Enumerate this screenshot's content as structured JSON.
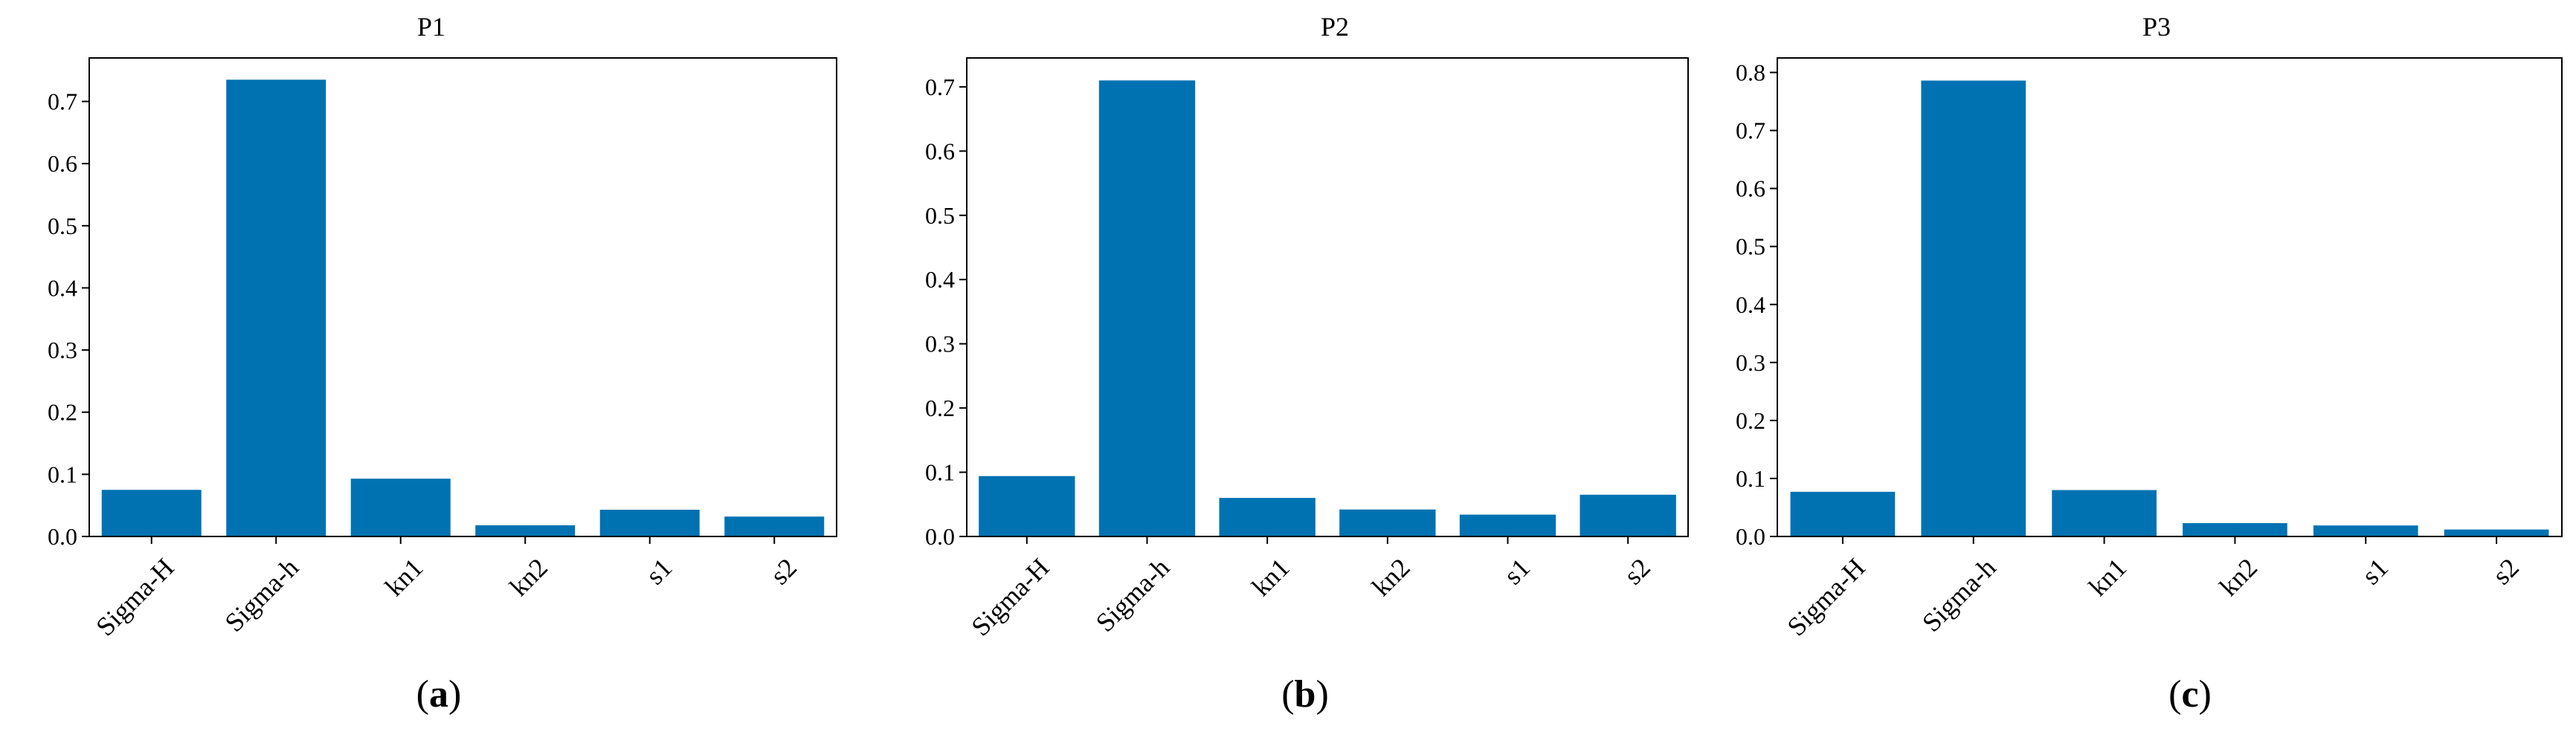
{
  "chart_data": [
    {
      "type": "bar",
      "title": "P1",
      "categories": [
        "Sigma-H",
        "Sigma-h",
        "kn1",
        "kn2",
        "s1",
        "s2"
      ],
      "values": [
        0.075,
        0.735,
        0.093,
        0.018,
        0.043,
        0.032
      ],
      "ylim": [
        0,
        0.77
      ],
      "yticks": [
        0.0,
        0.1,
        0.2,
        0.3,
        0.4,
        0.5,
        0.6,
        0.7
      ],
      "ytick_labels": [
        "0.0",
        "0.1",
        "0.2",
        "0.3",
        "0.4",
        "0.5",
        "0.6",
        "0.7"
      ],
      "bar_color": "#0072B2",
      "caption": {
        "open": "(",
        "letter": "a",
        "close": ")"
      }
    },
    {
      "type": "bar",
      "title": "P2",
      "categories": [
        "Sigma-H",
        "Sigma-h",
        "kn1",
        "kn2",
        "s1",
        "s2"
      ],
      "values": [
        0.094,
        0.71,
        0.06,
        0.042,
        0.034,
        0.065
      ],
      "ylim": [
        0,
        0.745
      ],
      "yticks": [
        0.0,
        0.1,
        0.2,
        0.3,
        0.4,
        0.5,
        0.6,
        0.7
      ],
      "ytick_labels": [
        "0.0",
        "0.1",
        "0.2",
        "0.3",
        "0.4",
        "0.5",
        "0.6",
        "0.7"
      ],
      "bar_color": "#0072B2",
      "caption": {
        "open": "(",
        "letter": "b",
        "close": ")"
      }
    },
    {
      "type": "bar",
      "title": "P3",
      "categories": [
        "Sigma-H",
        "Sigma-h",
        "kn1",
        "kn2",
        "s1",
        "s2"
      ],
      "values": [
        0.077,
        0.786,
        0.08,
        0.023,
        0.019,
        0.012
      ],
      "ylim": [
        0,
        0.825
      ],
      "yticks": [
        0.0,
        0.1,
        0.2,
        0.3,
        0.4,
        0.5,
        0.6,
        0.7,
        0.8
      ],
      "ytick_labels": [
        "0.0",
        "0.1",
        "0.2",
        "0.3",
        "0.4",
        "0.5",
        "0.6",
        "0.7",
        "0.8"
      ],
      "bar_color": "#0072B2",
      "caption": {
        "open": "(",
        "letter": "c",
        "close": ")"
      }
    }
  ]
}
